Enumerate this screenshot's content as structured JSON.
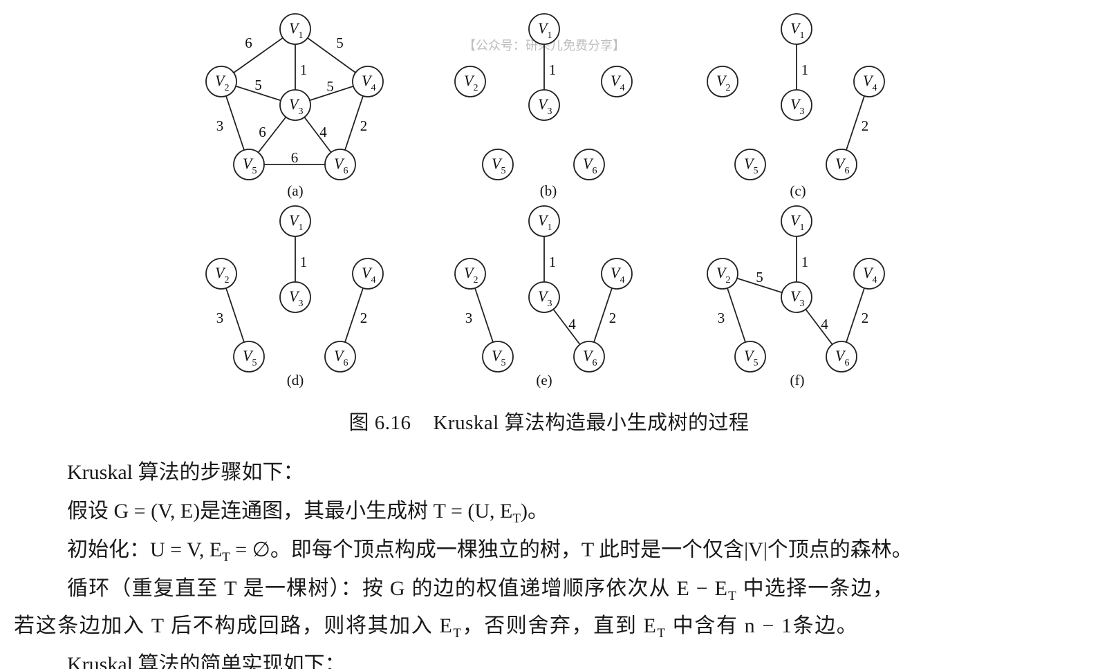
{
  "watermark": "【公众号：研朵儿免费分享】",
  "node_label_letter": "V",
  "nodes": [
    {
      "id": "V1",
      "sub": "1"
    },
    {
      "id": "V2",
      "sub": "2"
    },
    {
      "id": "V3",
      "sub": "3"
    },
    {
      "id": "V4",
      "sub": "4"
    },
    {
      "id": "V5",
      "sub": "5"
    },
    {
      "id": "V6",
      "sub": "6"
    }
  ],
  "panels": [
    {
      "label": "(a)",
      "edges": [
        [
          "V1",
          "V2",
          "6"
        ],
        [
          "V1",
          "V3",
          "1"
        ],
        [
          "V1",
          "V4",
          "5"
        ],
        [
          "V2",
          "V3",
          "5"
        ],
        [
          "V3",
          "V4",
          "5"
        ],
        [
          "V2",
          "V5",
          "3"
        ],
        [
          "V3",
          "V5",
          "6"
        ],
        [
          "V3",
          "V6",
          "4"
        ],
        [
          "V4",
          "V6",
          "2"
        ],
        [
          "V5",
          "V6",
          "6"
        ]
      ]
    },
    {
      "label": "(b)",
      "edges": [
        [
          "V1",
          "V3",
          "1"
        ]
      ]
    },
    {
      "label": "(c)",
      "edges": [
        [
          "V1",
          "V3",
          "1"
        ],
        [
          "V4",
          "V6",
          "2"
        ]
      ]
    },
    {
      "label": "(d)",
      "edges": [
        [
          "V1",
          "V3",
          "1"
        ],
        [
          "V2",
          "V5",
          "3"
        ],
        [
          "V4",
          "V6",
          "2"
        ]
      ]
    },
    {
      "label": "(e)",
      "edges": [
        [
          "V1",
          "V3",
          "1"
        ],
        [
          "V2",
          "V5",
          "3"
        ],
        [
          "V3",
          "V6",
          "4"
        ],
        [
          "V4",
          "V6",
          "2"
        ]
      ]
    },
    {
      "label": "(f)",
      "edges": [
        [
          "V1",
          "V3",
          "1"
        ],
        [
          "V2",
          "V3",
          "5"
        ],
        [
          "V2",
          "V5",
          "3"
        ],
        [
          "V3",
          "V6",
          "4"
        ],
        [
          "V4",
          "V6",
          "2"
        ]
      ]
    }
  ],
  "caption": {
    "number": "图 6.16",
    "text": "Kruskal 算法构造最小生成树的过程"
  },
  "body": {
    "p1": "Kruskal 算法的步骤如下：",
    "p2": "假设 G = (V, E)是连通图，其最小生成树 T = (U, E",
    "p2_sub": "T",
    "p2_end": ")。",
    "p3a": "初始化：U = V, E",
    "p3_sub": "T",
    "p3b": " = ∅。即每个顶点构成一棵独立的树，T 此时是一个仅含|V|个顶点的森林。",
    "p4a": "循环（重复直至 T 是一棵树）：按 G 的边的权值递增顺序依次从 E − E",
    "p4_sub": "T",
    "p4b": " 中选择一条边，",
    "p5a": "若这条边加入 T 后不构成回路，则将其加入 E",
    "p5_sub1": "T",
    "p5b": "，否则舍弃，直到 E",
    "p5_sub2": "T",
    "p5c": " 中含有 n − 1条边。",
    "p6": "Kruskal 算法的简单实现如下："
  }
}
